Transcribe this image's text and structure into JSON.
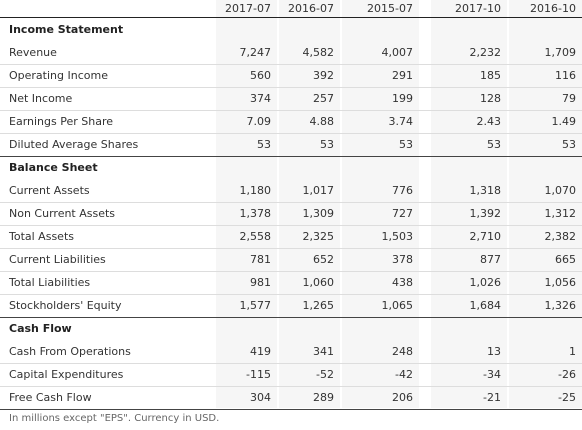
{
  "columns": [
    "2017-07",
    "2016-07",
    "2015-07",
    "2017-10",
    "2016-10"
  ],
  "sections": [
    {
      "title": "Income Statement",
      "rows": [
        {
          "label": "Revenue",
          "values": [
            "7,247",
            "4,582",
            "4,007",
            "2,232",
            "1,709"
          ]
        },
        {
          "label": "Operating Income",
          "values": [
            "560",
            "392",
            "291",
            "185",
            "116"
          ]
        },
        {
          "label": "Net Income",
          "values": [
            "374",
            "257",
            "199",
            "128",
            "79"
          ]
        },
        {
          "label": "Earnings Per Share",
          "values": [
            "7.09",
            "4.88",
            "3.74",
            "2.43",
            "1.49"
          ]
        },
        {
          "label": "Diluted Average Shares",
          "values": [
            "53",
            "53",
            "53",
            "53",
            "53"
          ]
        }
      ]
    },
    {
      "title": "Balance Sheet",
      "rows": [
        {
          "label": "Current Assets",
          "values": [
            "1,180",
            "1,017",
            "776",
            "1,318",
            "1,070"
          ]
        },
        {
          "label": "Non Current Assets",
          "values": [
            "1,378",
            "1,309",
            "727",
            "1,392",
            "1,312"
          ]
        },
        {
          "label": "Total Assets",
          "values": [
            "2,558",
            "2,325",
            "1,503",
            "2,710",
            "2,382"
          ]
        },
        {
          "label": "Current Liabilities",
          "values": [
            "781",
            "652",
            "378",
            "877",
            "665"
          ]
        },
        {
          "label": "Total Liabilities",
          "values": [
            "981",
            "1,060",
            "438",
            "1,026",
            "1,056"
          ]
        },
        {
          "label": "Stockholders' Equity",
          "values": [
            "1,577",
            "1,265",
            "1,065",
            "1,684",
            "1,326"
          ]
        }
      ]
    },
    {
      "title": "Cash Flow",
      "rows": [
        {
          "label": "Cash From Operations",
          "values": [
            "419",
            "341",
            "248",
            "13",
            "1"
          ]
        },
        {
          "label": "Capital Expenditures",
          "values": [
            "-115",
            "-52",
            "-42",
            "-34",
            "-26"
          ]
        },
        {
          "label": "Free Cash Flow",
          "values": [
            "304",
            "289",
            "206",
            "-21",
            "-25"
          ]
        }
      ]
    }
  ],
  "footnote": "In millions except \"EPS\". Currency in USD."
}
